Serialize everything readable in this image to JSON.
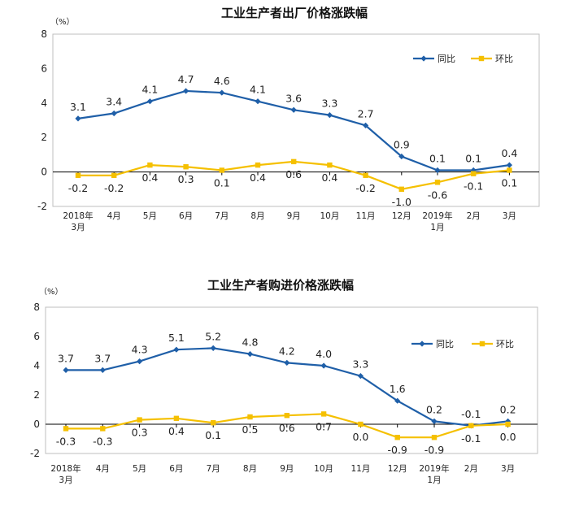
{
  "chart_data": [
    {
      "type": "line",
      "title": "工业生产者出厂价格涨跌幅",
      "unit_label": "（%）",
      "categories": [
        [
          "2018年",
          "3月"
        ],
        [
          "4月"
        ],
        [
          "5月"
        ],
        [
          "6月"
        ],
        [
          "7月"
        ],
        [
          "8月"
        ],
        [
          "9月"
        ],
        [
          "10月"
        ],
        [
          "11月"
        ],
        [
          "12月"
        ],
        [
          "2019年",
          "1月"
        ],
        [
          "2月"
        ],
        [
          "3月"
        ]
      ],
      "ylim": [
        -2,
        8
      ],
      "yticks": [
        -2,
        0,
        2,
        4,
        6,
        8
      ],
      "legend_position": "top-right",
      "series": [
        {
          "name": "同比",
          "color": "#1F5FA8",
          "marker": "diamond",
          "values": [
            3.1,
            3.4,
            4.1,
            4.7,
            4.6,
            4.1,
            3.6,
            3.3,
            2.7,
            0.9,
            0.1,
            0.1,
            0.4
          ],
          "labels": [
            "3.1",
            "3.4",
            "4.1",
            "4.7",
            "4.6",
            "4.1",
            "3.6",
            "3.3",
            "2.7",
            "0.9",
            "0.1",
            "0.1",
            "0.4"
          ]
        },
        {
          "name": "环比",
          "color": "#F5C000",
          "marker": "square",
          "values": [
            -0.2,
            -0.2,
            0.4,
            0.3,
            0.1,
            0.4,
            0.6,
            0.4,
            -0.2,
            -1.0,
            -0.6,
            -0.1,
            0.1
          ],
          "labels": [
            "-0.2",
            "-0.2",
            "0.4",
            "0.3",
            "0.1",
            "0.4",
            "0.6",
            "0.4",
            "-0.2",
            "-1.0",
            "-0.6",
            "-0.1",
            "0.1"
          ]
        }
      ]
    },
    {
      "type": "line",
      "title": "工业生产者购进价格涨跌幅",
      "unit_label": "（%）",
      "categories": [
        [
          "2018年",
          "3月"
        ],
        [
          "4月"
        ],
        [
          "5月"
        ],
        [
          "6月"
        ],
        [
          "7月"
        ],
        [
          "8月"
        ],
        [
          "9月"
        ],
        [
          "10月"
        ],
        [
          "11月"
        ],
        [
          "12月"
        ],
        [
          "2019年",
          "1月"
        ],
        [
          "2月"
        ],
        [
          "3月"
        ]
      ],
      "ylim": [
        -2,
        8
      ],
      "yticks": [
        -2,
        0,
        2,
        4,
        6,
        8
      ],
      "legend_position": "top-right",
      "series": [
        {
          "name": "同比",
          "color": "#1F5FA8",
          "marker": "diamond",
          "values": [
            3.7,
            3.7,
            4.3,
            5.1,
            5.2,
            4.8,
            4.2,
            4.0,
            3.3,
            1.6,
            0.2,
            -0.1,
            0.2
          ],
          "labels": [
            "3.7",
            "3.7",
            "4.3",
            "5.1",
            "5.2",
            "4.8",
            "4.2",
            "4.0",
            "3.3",
            "1.6",
            "0.2",
            "-0.1",
            "0.2"
          ]
        },
        {
          "name": "环比",
          "color": "#F5C000",
          "marker": "square",
          "values": [
            -0.3,
            -0.3,
            0.3,
            0.4,
            0.1,
            0.5,
            0.6,
            0.7,
            0.0,
            -0.9,
            -0.9,
            -0.1,
            0.0
          ],
          "labels": [
            "-0.3",
            "-0.3",
            "0.3",
            "0.4",
            "0.1",
            "0.5",
            "0.6",
            "0.7",
            "0.0",
            "-0.9",
            "-0.9",
            "-0.1",
            "0.0"
          ]
        }
      ]
    }
  ]
}
